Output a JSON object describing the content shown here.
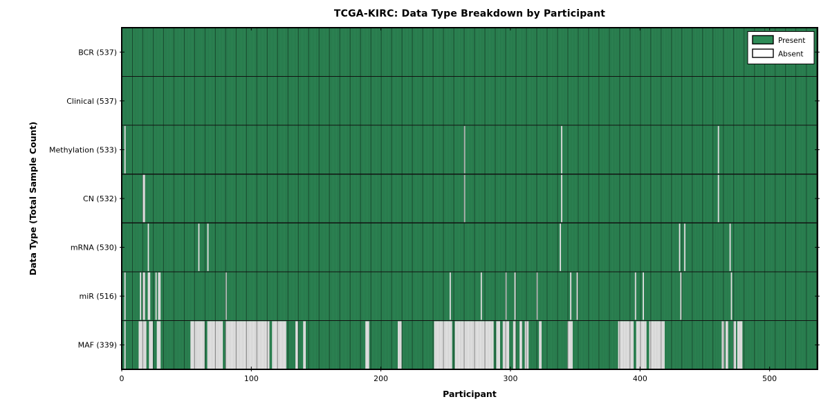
{
  "chart_data": {
    "type": "heatmap",
    "title": "TCGA-KIRC: Data Type Breakdown by Participant",
    "xlabel": "Participant",
    "ylabel": "Data Type (Total Sample Count)",
    "n_participants": 537,
    "x_ticks": [
      0,
      100,
      200,
      300,
      400,
      500
    ],
    "grid": false,
    "legend_position": "upper right",
    "colors": {
      "present": "#2e8b57",
      "absent_fill": "#f2f2f2",
      "border": "#000000",
      "separator": "#111111"
    },
    "legend": [
      {
        "label": "Present",
        "color": "#2e8b57"
      },
      {
        "label": "Absent",
        "color": "#ffffff"
      }
    ],
    "rows": [
      {
        "label": "BCR (537)",
        "name": "BCR",
        "total": 537,
        "absent_ranges": []
      },
      {
        "label": "Clinical (537)",
        "name": "Clinical",
        "total": 537,
        "absent_ranges": []
      },
      {
        "label": "Methylation (533)",
        "name": "Methylation",
        "total": 533,
        "absent_ranges": [
          [
            2,
            2
          ],
          [
            264,
            264
          ],
          [
            339,
            339
          ],
          [
            460,
            460
          ]
        ]
      },
      {
        "label": "CN (532)",
        "name": "CN",
        "total": 532,
        "absent_ranges": [
          [
            16,
            17
          ],
          [
            264,
            264
          ],
          [
            339,
            339
          ],
          [
            460,
            460
          ]
        ]
      },
      {
        "label": "mRNA (530)",
        "name": "mRNA",
        "total": 530,
        "absent_ranges": [
          [
            20,
            20
          ],
          [
            59,
            59
          ],
          [
            66,
            66
          ],
          [
            338,
            338
          ],
          [
            430,
            430
          ],
          [
            434,
            434
          ],
          [
            469,
            469
          ]
        ]
      },
      {
        "label": "miR (516)",
        "name": "miR",
        "total": 516,
        "absent_ranges": [
          [
            2,
            2
          ],
          [
            14,
            14
          ],
          [
            16,
            17
          ],
          [
            20,
            21
          ],
          [
            26,
            26
          ],
          [
            28,
            29
          ],
          [
            80,
            80
          ],
          [
            253,
            253
          ],
          [
            277,
            277
          ],
          [
            296,
            296
          ],
          [
            303,
            303
          ],
          [
            320,
            320
          ],
          [
            346,
            346
          ],
          [
            351,
            351
          ],
          [
            396,
            396
          ],
          [
            402,
            402
          ],
          [
            431,
            431
          ],
          [
            470,
            470
          ]
        ]
      },
      {
        "label": "MAF (339)",
        "name": "MAF",
        "total": 339,
        "absent_ranges": [
          [
            2,
            2
          ],
          [
            13,
            18
          ],
          [
            21,
            23
          ],
          [
            27,
            29
          ],
          [
            53,
            63
          ],
          [
            66,
            77
          ],
          [
            80,
            113
          ],
          [
            116,
            126
          ],
          [
            134,
            135
          ],
          [
            140,
            141
          ],
          [
            188,
            190
          ],
          [
            213,
            215
          ],
          [
            241,
            254
          ],
          [
            257,
            286
          ],
          [
            289,
            291
          ],
          [
            294,
            298
          ],
          [
            302,
            303
          ],
          [
            307,
            308
          ],
          [
            311,
            313
          ],
          [
            322,
            323
          ],
          [
            344,
            347
          ],
          [
            383,
            394
          ],
          [
            397,
            404
          ],
          [
            407,
            418
          ],
          [
            463,
            464
          ],
          [
            466,
            467
          ],
          [
            472,
            473
          ],
          [
            475,
            478
          ]
        ]
      }
    ]
  }
}
